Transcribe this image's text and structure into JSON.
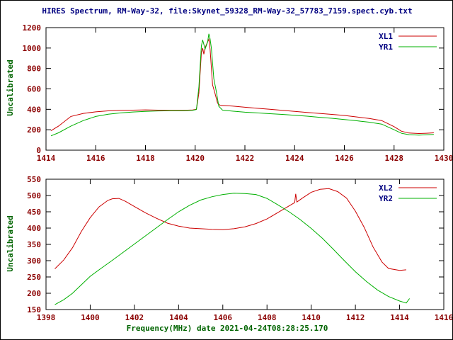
{
  "title": "HIRES Spectrum, RM-Way-32, file:Skynet_59328_RM-Way-32_57783_7159.spect.cyb.txt",
  "colors": {
    "title_text": "#000080",
    "tick_text": "#8B0000",
    "axis_label_text": "#006400",
    "legend_text": "#000080",
    "frame": "#000000",
    "background": "#ffffff",
    "series_red": "#cc0000",
    "series_green": "#00b000"
  },
  "chart_data": [
    {
      "type": "line",
      "title": "",
      "xlabel": "",
      "ylabel": "Uncalibrated",
      "xlim": [
        1414,
        1430
      ],
      "ylim": [
        0,
        1200
      ],
      "xticks": [
        1414,
        1416,
        1418,
        1420,
        1422,
        1424,
        1426,
        1428,
        1430
      ],
      "yticks": [
        0,
        200,
        400,
        600,
        800,
        1000,
        1200
      ],
      "grid": false,
      "legend_position": "top-right",
      "series": [
        {
          "name": "XL1",
          "color": "#cc0000",
          "x": [
            1414.2,
            1414.5,
            1415.0,
            1415.5,
            1416.0,
            1416.5,
            1417.0,
            1417.5,
            1418.0,
            1418.5,
            1419.0,
            1419.5,
            1419.9,
            1420.05,
            1420.15,
            1420.25,
            1420.3,
            1420.35,
            1420.4,
            1420.5,
            1420.55,
            1420.6,
            1420.7,
            1420.8,
            1420.9,
            1421.0,
            1421.5,
            1422.0,
            1422.5,
            1423.0,
            1423.5,
            1424.0,
            1424.5,
            1425.0,
            1425.5,
            1426.0,
            1426.5,
            1427.0,
            1427.5,
            1428.0,
            1428.3,
            1428.6,
            1429.0,
            1429.3,
            1429.6
          ],
          "y": [
            190,
            235,
            330,
            360,
            375,
            385,
            390,
            392,
            395,
            392,
            390,
            390,
            393,
            400,
            560,
            950,
            1000,
            940,
            1005,
            1060,
            1085,
            990,
            640,
            555,
            460,
            440,
            432,
            420,
            410,
            400,
            390,
            380,
            370,
            360,
            350,
            340,
            325,
            310,
            290,
            230,
            185,
            168,
            163,
            166,
            170
          ]
        },
        {
          "name": "YR1",
          "color": "#00b000",
          "x": [
            1414.2,
            1414.5,
            1415.0,
            1415.5,
            1416.0,
            1416.5,
            1417.0,
            1417.5,
            1418.0,
            1418.5,
            1419.0,
            1419.5,
            1419.9,
            1420.05,
            1420.15,
            1420.25,
            1420.3,
            1420.4,
            1420.5,
            1420.55,
            1420.6,
            1420.65,
            1420.75,
            1420.85,
            1420.95,
            1421.1,
            1421.5,
            1422.0,
            1422.5,
            1423.0,
            1423.5,
            1424.0,
            1424.5,
            1425.0,
            1425.5,
            1426.0,
            1426.5,
            1427.0,
            1427.5,
            1428.0,
            1428.3,
            1428.6,
            1429.0,
            1429.3,
            1429.6
          ],
          "y": [
            140,
            170,
            235,
            290,
            330,
            352,
            365,
            374,
            380,
            384,
            386,
            386,
            390,
            398,
            620,
            1020,
            1080,
            990,
            1060,
            1140,
            1090,
            1000,
            700,
            575,
            430,
            392,
            382,
            372,
            365,
            357,
            350,
            342,
            333,
            322,
            312,
            300,
            288,
            274,
            255,
            200,
            165,
            152,
            148,
            151,
            155
          ]
        }
      ]
    },
    {
      "type": "line",
      "title": "",
      "xlabel": "Frequency(MHz) date 2021-04-24T08:28:25.170",
      "ylabel": "Uncalibrated",
      "xlim": [
        1398,
        1416
      ],
      "ylim": [
        150,
        550
      ],
      "xticks": [
        1398,
        1400,
        1402,
        1404,
        1406,
        1408,
        1410,
        1412,
        1414,
        1416
      ],
      "yticks": [
        150,
        200,
        250,
        300,
        350,
        400,
        450,
        500,
        550
      ],
      "grid": false,
      "legend_position": "top-right",
      "series": [
        {
          "name": "XL2",
          "color": "#cc0000",
          "x": [
            1398.4,
            1398.8,
            1399.2,
            1399.6,
            1400.0,
            1400.4,
            1400.8,
            1401.0,
            1401.3,
            1401.6,
            1402.0,
            1402.5,
            1403.0,
            1403.5,
            1404.0,
            1404.5,
            1405.0,
            1405.5,
            1406.0,
            1406.5,
            1407.0,
            1407.5,
            1408.0,
            1408.5,
            1409.0,
            1409.25,
            1409.3,
            1409.35,
            1409.6,
            1410.0,
            1410.4,
            1410.8,
            1411.2,
            1411.6,
            1412.0,
            1412.4,
            1412.8,
            1413.2,
            1413.5,
            1414.0,
            1414.3
          ],
          "y": [
            275,
            302,
            340,
            390,
            432,
            465,
            485,
            490,
            491,
            482,
            466,
            447,
            430,
            415,
            406,
            400,
            398,
            396,
            395,
            398,
            404,
            414,
            428,
            448,
            468,
            478,
            505,
            480,
            492,
            510,
            519,
            521,
            512,
            492,
            452,
            402,
            342,
            296,
            276,
            270,
            272
          ]
        },
        {
          "name": "YR2",
          "color": "#00b000",
          "x": [
            1398.4,
            1398.8,
            1399.2,
            1399.6,
            1400.0,
            1400.5,
            1401.0,
            1401.5,
            1402.0,
            1402.5,
            1403.0,
            1403.5,
            1404.0,
            1404.5,
            1405.0,
            1405.5,
            1406.0,
            1406.5,
            1407.0,
            1407.5,
            1408.0,
            1408.5,
            1409.0,
            1409.5,
            1410.0,
            1410.5,
            1411.0,
            1411.5,
            1412.0,
            1412.5,
            1413.0,
            1413.5,
            1414.0,
            1414.3,
            1414.45
          ],
          "y": [
            165,
            180,
            200,
            226,
            252,
            277,
            301,
            326,
            351,
            376,
            401,
            426,
            450,
            470,
            486,
            496,
            503,
            507,
            506,
            503,
            491,
            471,
            450,
            426,
            399,
            369,
            335,
            300,
            266,
            236,
            210,
            190,
            176,
            170,
            184
          ]
        }
      ]
    }
  ]
}
